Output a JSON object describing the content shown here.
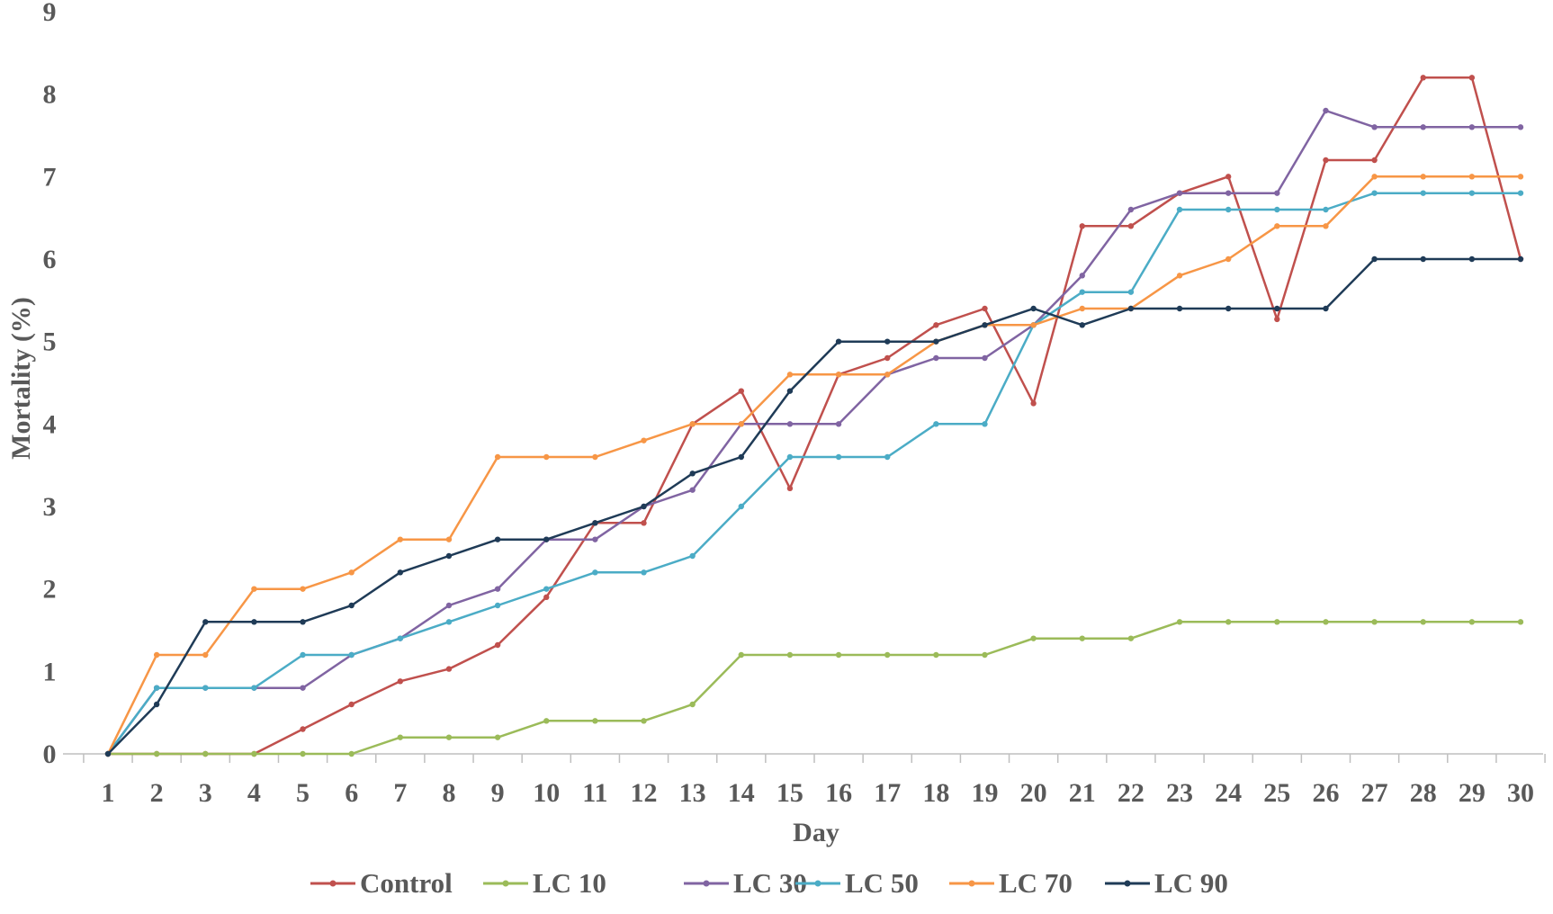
{
  "chart_data": {
    "type": "line",
    "title": "",
    "xlabel": "Day",
    "ylabel": "Mortality (%)",
    "ylim": [
      0,
      9
    ],
    "yticks": [
      0,
      1,
      2,
      3,
      4,
      5,
      6,
      7,
      8,
      9
    ],
    "x": [
      1,
      2,
      3,
      4,
      5,
      6,
      7,
      8,
      9,
      10,
      11,
      12,
      13,
      14,
      15,
      16,
      17,
      18,
      19,
      20,
      21,
      22,
      23,
      24,
      25,
      26,
      27,
      28,
      29,
      30
    ],
    "x_tick_labels": [
      "1",
      "2",
      "3",
      "4",
      "5",
      "6",
      "7",
      "8",
      "9",
      "10",
      "11",
      "12",
      "13",
      "14",
      "15",
      "16",
      "17",
      "18",
      "19",
      "20",
      "21",
      "22",
      "23",
      "24",
      "25",
      "26",
      "27",
      "28",
      "29",
      "30"
    ],
    "grid": false,
    "legend_position": "bottom",
    "series": [
      {
        "name": "Control",
        "color": "#c0504d",
        "values": [
          0,
          0,
          0,
          0,
          0.3,
          0.6,
          0.88,
          1.03,
          1.32,
          1.9,
          2.8,
          2.8,
          4.0,
          4.4,
          3.22,
          4.6,
          4.8,
          5.2,
          5.4,
          4.25,
          6.4,
          6.4,
          6.8,
          7.0,
          5.27,
          7.2,
          7.2,
          8.2,
          8.2,
          6.0
        ]
      },
      {
        "name": "LC 10",
        "color": "#9bbb59",
        "values": [
          0,
          0,
          0,
          0,
          0,
          0,
          0.2,
          0.2,
          0.2,
          0.4,
          0.4,
          0.4,
          0.6,
          1.2,
          1.2,
          1.2,
          1.2,
          1.2,
          1.2,
          1.4,
          1.4,
          1.4,
          1.6,
          1.6,
          1.6,
          1.6,
          1.6,
          1.6,
          1.6,
          1.6
        ]
      },
      {
        "name": "LC 30",
        "color": "#8064a2",
        "values": [
          0,
          0.8,
          0.8,
          0.8,
          0.8,
          1.2,
          1.4,
          1.8,
          2.0,
          2.6,
          2.6,
          3.0,
          3.2,
          4.0,
          4.0,
          4.0,
          4.6,
          4.8,
          4.8,
          5.2,
          5.8,
          6.6,
          6.8,
          6.8,
          6.8,
          7.8,
          7.6,
          7.6,
          7.6,
          7.6
        ]
      },
      {
        "name": "LC 50",
        "color": "#4bacc6",
        "values": [
          0,
          0.8,
          0.8,
          0.8,
          1.2,
          1.2,
          1.4,
          1.6,
          1.8,
          2.0,
          2.2,
          2.2,
          2.4,
          3.0,
          3.6,
          3.6,
          3.6,
          4.0,
          4.0,
          5.2,
          5.6,
          5.6,
          6.6,
          6.6,
          6.6,
          6.6,
          6.8,
          6.8,
          6.8,
          6.8
        ]
      },
      {
        "name": "LC 70",
        "color": "#f79646",
        "values": [
          0,
          1.2,
          1.2,
          2.0,
          2.0,
          2.2,
          2.6,
          2.6,
          3.6,
          3.6,
          3.6,
          3.8,
          4.0,
          4.0,
          4.6,
          4.6,
          4.6,
          5.0,
          5.2,
          5.2,
          5.4,
          5.4,
          5.8,
          6.0,
          6.4,
          6.4,
          7.0,
          7.0,
          7.0,
          7.0
        ]
      },
      {
        "name": "LC 90",
        "color": "#1f3b57",
        "values": [
          0,
          0.6,
          1.6,
          1.6,
          1.6,
          1.8,
          2.2,
          2.4,
          2.6,
          2.6,
          2.8,
          3.0,
          3.4,
          3.6,
          4.4,
          5.0,
          5.0,
          5.0,
          5.2,
          5.4,
          5.2,
          5.4,
          5.4,
          5.4,
          5.4,
          5.4,
          6.0,
          6.0,
          6.0,
          6.0
        ]
      }
    ]
  }
}
